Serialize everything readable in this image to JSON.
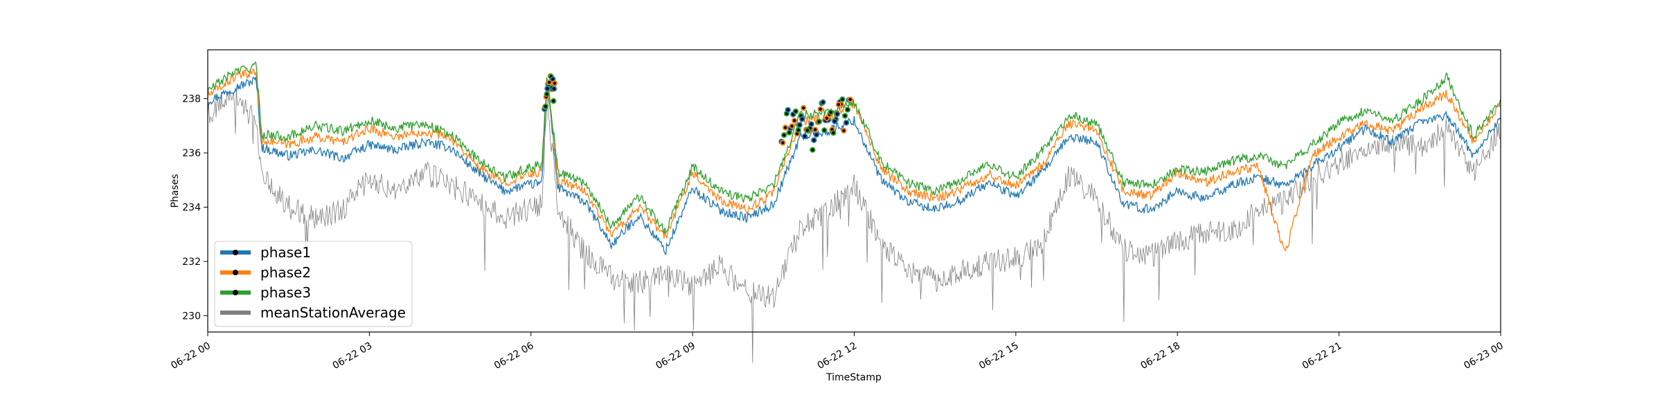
{
  "chart_data": {
    "type": "line",
    "xlabel": "TimeStamp",
    "ylabel": "Phases",
    "xlim": [
      "06-22 00",
      "06-23 00"
    ],
    "ylim": [
      229.4,
      239.8
    ],
    "x_ticks": [
      "06-22 00",
      "06-22 03",
      "06-22 06",
      "06-22 09",
      "06-22 12",
      "06-22 15",
      "06-22 18",
      "06-22 21",
      "06-23 00"
    ],
    "y_ticks": [
      230,
      232,
      234,
      236,
      238
    ],
    "grid": false,
    "legend": {
      "position": "lower-left",
      "entries": [
        "phase1",
        "phase2",
        "phase3",
        "meanStationAverage"
      ]
    },
    "x_hours": [
      0,
      0.5,
      0.9,
      1.0,
      1.5,
      2.0,
      2.5,
      3.0,
      3.5,
      4.0,
      4.5,
      5.0,
      5.5,
      5.9,
      6.2,
      6.3,
      6.5,
      7.0,
      7.5,
      8.0,
      8.5,
      9.0,
      9.5,
      10.0,
      10.5,
      11.0,
      11.5,
      12.0,
      12.5,
      13.0,
      13.5,
      14.0,
      14.5,
      15.0,
      15.5,
      16.0,
      16.5,
      17.0,
      17.5,
      18.0,
      18.5,
      19.0,
      19.5,
      20.0,
      20.5,
      21.0,
      21.5,
      22.0,
      22.5,
      23.0,
      23.5,
      24.0
    ],
    "series": [
      {
        "name": "phase1",
        "color": "#1f77b4",
        "values": [
          237.9,
          238.4,
          238.7,
          236.2,
          235.9,
          236.1,
          235.8,
          236.3,
          236.1,
          236.4,
          236.2,
          235.3,
          234.6,
          234.8,
          234.9,
          238.7,
          234.7,
          234.2,
          232.6,
          233.7,
          232.4,
          234.7,
          233.9,
          233.6,
          234.1,
          236.6,
          236.8,
          237.2,
          235.0,
          234.2,
          233.9,
          234.3,
          234.9,
          234.4,
          235.3,
          236.6,
          236.4,
          234.1,
          233.9,
          234.6,
          234.3,
          234.8,
          235.1,
          234.8,
          235.5,
          236.2,
          236.9,
          236.4,
          237.1,
          237.4,
          235.9,
          237.3
        ]
      },
      {
        "name": "phase2",
        "color": "#ff7f0e",
        "values": [
          238.1,
          238.8,
          239.0,
          236.5,
          236.3,
          236.6,
          236.4,
          236.9,
          236.6,
          236.8,
          236.6,
          235.5,
          234.9,
          235.2,
          235.3,
          238.8,
          235.0,
          234.6,
          233.0,
          234.0,
          232.9,
          235.3,
          234.3,
          233.9,
          234.5,
          237.2,
          237.3,
          237.8,
          235.4,
          234.6,
          234.3,
          234.7,
          235.2,
          234.8,
          235.6,
          237.1,
          236.8,
          234.6,
          234.4,
          235.3,
          234.9,
          235.3,
          235.5,
          232.3,
          235.9,
          236.6,
          237.1,
          236.8,
          237.6,
          238.2,
          236.4,
          237.8
        ]
      },
      {
        "name": "phase3",
        "color": "#2ca02c",
        "values": [
          238.3,
          239.0,
          239.2,
          236.7,
          236.6,
          237.0,
          236.8,
          237.2,
          236.9,
          237.1,
          236.7,
          235.8,
          235.1,
          235.4,
          235.6,
          238.9,
          235.3,
          234.9,
          233.3,
          234.4,
          233.1,
          235.5,
          234.6,
          234.3,
          234.8,
          237.4,
          237.5,
          237.9,
          235.7,
          234.9,
          234.6,
          235.0,
          235.6,
          235.1,
          236.1,
          237.4,
          237.1,
          234.9,
          234.8,
          235.4,
          235.3,
          235.7,
          235.9,
          235.5,
          236.3,
          237.1,
          237.6,
          237.2,
          237.9,
          238.8,
          236.6,
          238.0
        ]
      },
      {
        "name": "meanStationAverage",
        "color": "#7f7f7f",
        "values": [
          237.5,
          238.0,
          237.2,
          235.3,
          234.0,
          233.6,
          233.9,
          235.1,
          234.6,
          235.3,
          234.8,
          234.3,
          233.6,
          233.9,
          234.1,
          238.1,
          233.9,
          232.3,
          231.4,
          231.2,
          231.6,
          231.1,
          231.8,
          230.9,
          230.6,
          233.2,
          233.9,
          234.8,
          232.7,
          231.7,
          231.3,
          231.6,
          232.0,
          232.1,
          232.7,
          235.2,
          234.3,
          232.4,
          232.2,
          232.7,
          233.1,
          233.0,
          233.9,
          234.2,
          235.1,
          235.6,
          236.1,
          236.4,
          236.2,
          236.9,
          235.2,
          236.9
        ]
      }
    ],
    "markers": {
      "description_series": [
        "phase1",
        "phase2",
        "phase3"
      ],
      "marker_color": "#000000",
      "clusters": [
        {
          "x_start": 6.25,
          "x_end": 6.45,
          "values": [
            237.8,
            238.1,
            238.5,
            238.9,
            238.6,
            238.2
          ]
        },
        {
          "x_start": 10.65,
          "x_end": 11.95,
          "values": [
            236.6,
            237.2,
            236.9,
            237.4,
            236.8,
            237.3,
            236.7,
            237.1,
            236.5,
            236.9,
            237.6,
            237.0,
            237.3,
            236.8,
            237.5,
            237.8,
            237.2,
            237.9
          ]
        }
      ]
    }
  }
}
